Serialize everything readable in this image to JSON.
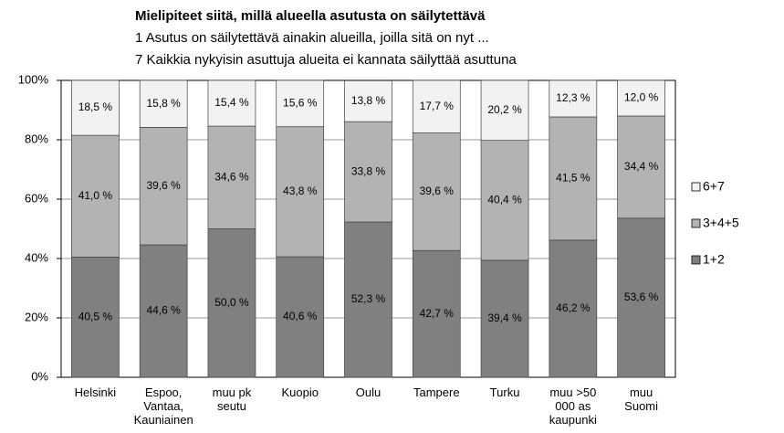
{
  "chart_data": {
    "type": "stacked_bar",
    "title": "Mielipiteet siitä, millä alueella asutusta on säilytettävä",
    "subtitle": [
      "1 Asutus on säilytettävä ainakin alueilla, joilla sitä on nyt ...",
      "7 Kaikkia nykyisin asuttuja alueita ei kannata säilyttää asuttuna"
    ],
    "categories": [
      "Helsinki",
      "Espoo, Vantaa, Kauniainen",
      "muu pk seutu",
      "Kuopio",
      "Oulu",
      "Tampere",
      "Turku",
      "muu >50 000 as kaupunki",
      "muu Suomi"
    ],
    "series": [
      {
        "name": "1+2",
        "color": "#808080",
        "values": [
          40.5,
          44.6,
          50.0,
          40.6,
          52.3,
          42.7,
          39.4,
          46.2,
          53.6
        ],
        "value_labels": [
          "40,5 %",
          "44,6 %",
          "50,0 %",
          "40,6 %",
          "52,3 %",
          "42,7 %",
          "39,4 %",
          "46,2 %",
          "53,6 %"
        ]
      },
      {
        "name": "3+4+5",
        "color": "#b3b3b3",
        "values": [
          41.0,
          39.6,
          34.6,
          43.8,
          33.8,
          39.6,
          40.4,
          41.5,
          34.4
        ],
        "value_labels": [
          "41,0 %",
          "39,6 %",
          "34,6 %",
          "43,8 %",
          "33,8 %",
          "39,6 %",
          "40,4 %",
          "41,5 %",
          "34,4 %"
        ]
      },
      {
        "name": "6+7",
        "color": "#f2f2f2",
        "values": [
          18.5,
          15.8,
          15.4,
          15.6,
          13.8,
          17.7,
          20.2,
          12.3,
          12.0
        ],
        "value_labels": [
          "18,5 %",
          "15,8 %",
          "15,4 %",
          "15,6 %",
          "13,8 %",
          "17,7 %",
          "20,2 %",
          "12,3 %",
          "12,0 %"
        ]
      }
    ],
    "ylim": [
      0,
      100
    ],
    "yticks": [
      {
        "value": 0,
        "label": "0%"
      },
      {
        "value": 20,
        "label": "20%"
      },
      {
        "value": 40,
        "label": "40%"
      },
      {
        "value": 60,
        "label": "60%"
      },
      {
        "value": 80,
        "label": "80%"
      },
      {
        "value": 100,
        "label": "100%"
      }
    ],
    "grid": true,
    "legend": "right"
  }
}
